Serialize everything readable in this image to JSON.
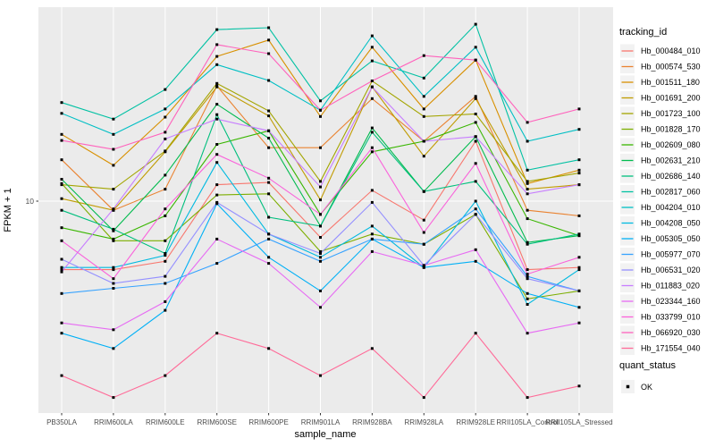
{
  "chart_data": {
    "type": "line",
    "title": "",
    "xlabel": "sample_name",
    "ylabel": "FPKM + 1",
    "y_scale": "log10",
    "y_tick_label": "10",
    "ylim": [
      1.9,
      47
    ],
    "grid": true,
    "legend_position": "right",
    "legend_title": "tracking_id",
    "quant_legend_title": "quant_status",
    "quant_status_value": "OK",
    "panel_bg": "#EBEBEB",
    "grid_color": "#FFFFFF",
    "point_color": "#000000",
    "point_shape": "square",
    "axis_text_color": "#4D4D4D",
    "categories": [
      "PB350LA",
      "RRIM600LA",
      "RRIM600LE",
      "RRIM600SE",
      "RRIM600PE",
      "RRIM901LA",
      "RRIM928BA",
      "RRIM928LA",
      "RRIM928LE",
      "RRII105LA_Control",
      "RRII105LA_Stressed"
    ],
    "series": [
      {
        "name": "Hb_000484_010",
        "color": "#F8766D",
        "values": [
          5.8,
          5.8,
          6.2,
          11.4,
          11.6,
          7.5,
          10.9,
          8.6,
          16.1,
          5.8,
          5.9
        ]
      },
      {
        "name": "Hb_000574_530",
        "color": "#EA8331",
        "values": [
          13.9,
          9.3,
          11.0,
          25.0,
          15.3,
          15.3,
          22.6,
          16.1,
          23.0,
          9.3,
          8.9
        ]
      },
      {
        "name": "Hb_001511_180",
        "color": "#D89000",
        "values": [
          17.0,
          13.3,
          19.5,
          31.6,
          36.0,
          19.6,
          34.0,
          20.8,
          30.7,
          11.5,
          12.8
        ]
      },
      {
        "name": "Hb_001691_200",
        "color": "#C09B00",
        "values": [
          10.2,
          9.3,
          14.8,
          24.8,
          19.7,
          10.1,
          24.8,
          14.3,
          22.6,
          11.0,
          11.4
        ]
      },
      {
        "name": "Hb_001723_100",
        "color": "#A3A500",
        "values": [
          11.4,
          11.0,
          14.9,
          25.5,
          20.5,
          11.7,
          26.0,
          19.6,
          20.0,
          11.7,
          12.5
        ]
      },
      {
        "name": "Hb_001828_170",
        "color": "#7CAE00",
        "values": [
          11.5,
          7.3,
          7.3,
          10.5,
          10.6,
          6.7,
          7.7,
          7.1,
          9.0,
          4.6,
          4.9
        ]
      },
      {
        "name": "Hb_002609_080",
        "color": "#39B600",
        "values": [
          8.1,
          7.4,
          8.9,
          15.7,
          17.5,
          9.0,
          14.8,
          16.1,
          18.7,
          8.7,
          7.6
        ]
      },
      {
        "name": "Hb_002631_210",
        "color": "#00BB4E",
        "values": [
          11.9,
          7.9,
          12.3,
          21.6,
          16.5,
          8.2,
          17.9,
          10.8,
          16.7,
          7.2,
          7.6
        ]
      },
      {
        "name": "Hb_002686_140",
        "color": "#00BF7D",
        "values": [
          9.3,
          8.0,
          6.6,
          19.9,
          8.8,
          8.2,
          17.3,
          10.8,
          11.7,
          7.1,
          7.7
        ]
      },
      {
        "name": "Hb_002817_060",
        "color": "#00C1A3",
        "values": [
          21.9,
          19.2,
          24.3,
          39.1,
          39.7,
          22.2,
          30.5,
          26.6,
          40.8,
          12.8,
          13.9
        ]
      },
      {
        "name": "Hb_004204_010",
        "color": "#00BFC4",
        "values": [
          20.1,
          17.0,
          20.8,
          29.6,
          26.1,
          20.6,
          37.2,
          23.0,
          34.0,
          16.1,
          17.7
        ]
      },
      {
        "name": "Hb_004208_050",
        "color": "#00BAE0",
        "values": [
          5.9,
          5.9,
          6.5,
          13.6,
          7.7,
          6.4,
          8.2,
          5.9,
          10.0,
          4.4,
          5.8
        ]
      },
      {
        "name": "Hb_005305_050",
        "color": "#00B0F6",
        "values": [
          3.5,
          3.1,
          4.2,
          9.8,
          6.4,
          4.9,
          7.4,
          5.9,
          6.2,
          4.8,
          4.3
        ]
      },
      {
        "name": "Hb_005977_070",
        "color": "#35A2FF",
        "values": [
          4.8,
          5.0,
          5.2,
          6.1,
          7.4,
          6.2,
          7.4,
          7.1,
          9.4,
          5.5,
          4.9
        ]
      },
      {
        "name": "Hb_006531_020",
        "color": "#9590FF",
        "values": [
          6.3,
          5.2,
          5.5,
          9.9,
          7.7,
          6.6,
          9.9,
          6.0,
          9.0,
          5.4,
          4.9
        ]
      },
      {
        "name": "Hb_011883_020",
        "color": "#C77CFF",
        "values": [
          5.7,
          9.4,
          16.4,
          19.2,
          17.5,
          11.2,
          24.8,
          16.1,
          16.7,
          10.6,
          11.4
        ]
      },
      {
        "name": "Hb_023344_160",
        "color": "#E76BF3",
        "values": [
          3.8,
          3.6,
          4.5,
          7.4,
          6.1,
          4.3,
          6.7,
          6.0,
          6.8,
          3.5,
          3.8
        ]
      },
      {
        "name": "Hb_033799_010",
        "color": "#FA62DB",
        "values": [
          7.3,
          5.4,
          9.4,
          14.5,
          12.0,
          9.0,
          15.3,
          7.8,
          13.5,
          5.6,
          6.4
        ]
      },
      {
        "name": "Hb_066920_030",
        "color": "#FF62BC",
        "values": [
          16.2,
          15.1,
          17.3,
          34.7,
          32.3,
          20.6,
          26.0,
          31.8,
          30.7,
          18.7,
          20.8
        ]
      },
      {
        "name": "Hb_171554_040",
        "color": "#FF6A98",
        "values": [
          2.5,
          2.1,
          2.5,
          3.5,
          3.1,
          2.5,
          3.1,
          2.1,
          3.5,
          2.1,
          2.3
        ]
      }
    ]
  }
}
